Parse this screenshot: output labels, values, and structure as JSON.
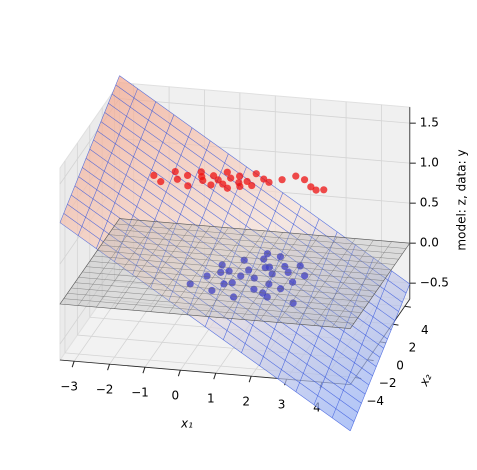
{
  "chart_data": {
    "type": "scatter3d",
    "xlabel": "x₁",
    "ylabel": "x₂",
    "zlabel": "model: z, data: y",
    "xlim": [
      -3.4,
      4.8
    ],
    "ylim": [
      -4.8,
      4.8
    ],
    "zlim": [
      -0.7,
      1.7
    ],
    "xticks": [
      {
        "value": -3,
        "label": "−3"
      },
      {
        "value": -2,
        "label": "−2"
      },
      {
        "value": -1,
        "label": "−1"
      },
      0,
      1,
      2,
      3,
      4
    ],
    "yticks": [
      {
        "value": -4,
        "label": "−4"
      },
      {
        "value": -2,
        "label": "−2"
      },
      0,
      2,
      4
    ],
    "zticks": [
      {
        "value": -0.5,
        "label": "−0.5"
      },
      {
        "value": 0,
        "label": "0.0"
      },
      0.5,
      {
        "value": 1,
        "label": "1.0"
      },
      1.5
    ],
    "grid": true,
    "surface": {
      "intercept": 0.45,
      "coef_x": -0.28,
      "coef_y": 0.08,
      "colors": [
        "#f4a68c",
        "#f7e3da",
        "#8eabf4"
      ],
      "line_color": "#3355dd"
    },
    "reference_plane_z": 0,
    "series": [
      {
        "color": "#ee1111",
        "x": [
          -1.8,
          -1.5,
          -1.3,
          -1.1,
          -0.9,
          -0.7,
          -0.6,
          -0.4,
          -0.2,
          -0.1,
          0,
          0.1,
          0.2,
          0.3,
          0.4,
          0.5,
          0.6,
          0.7,
          0.8,
          0.9,
          1.0,
          1.2,
          1.4,
          1.7,
          2.0,
          2.3,
          2.6,
          2.8,
          3.0,
          -0.5
        ],
        "y": [
          1.2,
          0.6,
          1.8,
          1.0,
          1.5,
          0.4,
          2.0,
          1.1,
          1.7,
          0.7,
          1.3,
          2.2,
          0.9,
          1.6,
          0.5,
          1.9,
          1.2,
          0.8,
          1.4,
          2.3,
          1.0,
          1.8,
          1.5,
          1.9,
          2.4,
          2.1,
          1.4,
          1.1,
          1.2,
          1.5
        ],
        "z": [
          1,
          1,
          1,
          1,
          1,
          1,
          1,
          1,
          1,
          1,
          1,
          1,
          1,
          1,
          1,
          1,
          1,
          1,
          1,
          1,
          1,
          1,
          1,
          1,
          1,
          1,
          1,
          1,
          1,
          1
        ]
      },
      {
        "color": "#0000cc",
        "x": [
          -0.3,
          0,
          0.2,
          0.4,
          0.5,
          0.7,
          0.8,
          1.0,
          1.1,
          1.2,
          1.3,
          1.4,
          1.5,
          1.6,
          1.7,
          1.8,
          1.9,
          2.0,
          2.1,
          2.2,
          2.4,
          2.6,
          2.8,
          0.9,
          1.5,
          0.6,
          1.2,
          2.3,
          0.3,
          1.8
        ],
        "y": [
          -1.5,
          -0.5,
          0.8,
          -2.0,
          0.2,
          1.5,
          -1.0,
          0.5,
          -2.5,
          1.8,
          -0.3,
          0.9,
          -1.5,
          2.2,
          0.3,
          -0.8,
          1.2,
          -2.2,
          0.6,
          -1.2,
          -0.4,
          0.4,
          -2.6,
          -0.2,
          1.0,
          -1.2,
          2.4,
          1.4,
          0.0,
          -1.8
        ],
        "z": [
          0,
          0,
          0,
          0,
          0,
          0,
          0,
          0,
          0,
          0,
          0,
          0,
          0,
          0,
          0,
          0,
          0,
          0,
          0,
          0,
          0,
          0,
          0,
          0,
          0,
          0,
          0,
          0,
          0,
          0
        ]
      }
    ]
  }
}
